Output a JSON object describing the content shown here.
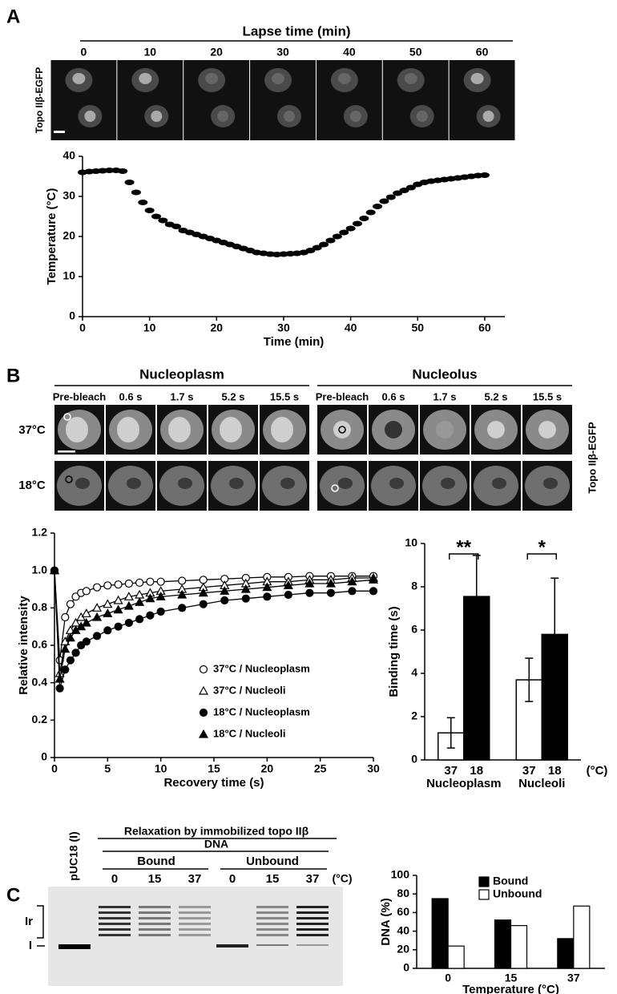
{
  "panel_labels": [
    "A",
    "B",
    "C"
  ],
  "panel_a": {
    "header": "Lapse time (min)",
    "times": [
      "0",
      "10",
      "20",
      "30",
      "40",
      "50",
      "60"
    ],
    "channel": "Topo IIβ-EGFP"
  },
  "panel_b": {
    "regions": [
      "Nucleoplasm",
      "Nucleolus"
    ],
    "timepoints": [
      "Pre-bleach",
      "0.6 s",
      "1.7 s",
      "5.2 s",
      "15.5 s"
    ],
    "temperatures": [
      "37°C",
      "18°C"
    ],
    "channel": "Topo IIβ-EGFP"
  },
  "panel_c": {
    "title": "Relaxation by immobilized topo IIβ",
    "dna": "DNA",
    "groups": [
      "Bound",
      "Unbound"
    ],
    "lanes": [
      "0",
      "15",
      "37",
      "0",
      "15",
      "37"
    ],
    "unit": "(°C)",
    "control": "pUC18 (I)",
    "bands": [
      "Ir",
      "I"
    ]
  },
  "chart_data": [
    {
      "type": "line",
      "x": [
        0,
        1,
        2,
        3,
        4,
        5,
        6,
        7,
        8,
        9,
        10,
        11,
        12,
        13,
        14,
        15,
        16,
        17,
        18,
        19,
        20,
        21,
        22,
        23,
        24,
        25,
        26,
        27,
        28,
        29,
        30,
        31,
        32,
        33,
        34,
        35,
        36,
        37,
        38,
        39,
        40,
        41,
        42,
        43,
        44,
        45,
        46,
        47,
        48,
        49,
        50,
        51,
        52,
        53,
        54,
        55,
        56,
        57,
        58,
        59,
        60
      ],
      "values": [
        36,
        36.2,
        36.3,
        36.4,
        36.5,
        36.5,
        36.3,
        33.5,
        31,
        28.5,
        26.5,
        25,
        24,
        23,
        22.5,
        21.5,
        21,
        20.5,
        20,
        19.5,
        19,
        18.5,
        18,
        17.5,
        17,
        16.5,
        16,
        15.8,
        15.6,
        15.5,
        15.6,
        15.7,
        15.8,
        16,
        16.5,
        17.2,
        18,
        19,
        20,
        21,
        22,
        23.2,
        24.5,
        26,
        27.5,
        28.8,
        29.8,
        30.8,
        31.5,
        32.2,
        33,
        33.5,
        33.8,
        34,
        34.2,
        34.4,
        34.6,
        34.8,
        35,
        35.2,
        35.3
      ],
      "color": "#000000",
      "xlim": [
        0,
        63
      ],
      "ylim": [
        0,
        40
      ],
      "xticks": [
        0,
        10,
        20,
        30,
        40,
        50,
        60
      ],
      "yticks": [
        0,
        10,
        20,
        30,
        40
      ],
      "xlabel": "Time (min)",
      "ylabel": "Temperature (°C)"
    },
    {
      "type": "line",
      "x": [
        0,
        0.5,
        1,
        1.5,
        2,
        2.5,
        3,
        4,
        5,
        6,
        7,
        8,
        9,
        10,
        12,
        14,
        16,
        18,
        20,
        22,
        24,
        26,
        28,
        30
      ],
      "series": [
        {
          "name": "37°C / Nucleoplasm",
          "color": "#000000",
          "marker": "circle",
          "filled": false,
          "values": [
            1.0,
            0.52,
            0.75,
            0.82,
            0.86,
            0.88,
            0.89,
            0.91,
            0.92,
            0.925,
            0.93,
            0.935,
            0.94,
            0.94,
            0.945,
            0.95,
            0.955,
            0.96,
            0.965,
            0.965,
            0.97,
            0.97,
            0.97,
            0.97
          ]
        },
        {
          "name": "37°C / Nucleoli",
          "color": "#000000",
          "marker": "triangle",
          "filled": false,
          "values": [
            1.0,
            0.45,
            0.62,
            0.68,
            0.72,
            0.75,
            0.77,
            0.8,
            0.82,
            0.84,
            0.86,
            0.87,
            0.88,
            0.89,
            0.9,
            0.91,
            0.92,
            0.93,
            0.94,
            0.94,
            0.95,
            0.95,
            0.96,
            0.96
          ]
        },
        {
          "name": "18°C / Nucleoplasm",
          "color": "#000000",
          "marker": "circle",
          "filled": true,
          "values": [
            1.0,
            0.37,
            0.47,
            0.52,
            0.56,
            0.6,
            0.62,
            0.65,
            0.68,
            0.7,
            0.72,
            0.74,
            0.76,
            0.78,
            0.8,
            0.82,
            0.84,
            0.85,
            0.86,
            0.87,
            0.88,
            0.88,
            0.89,
            0.89
          ]
        },
        {
          "name": "18°C / Nucleoli",
          "color": "#000000",
          "marker": "triangle",
          "filled": true,
          "values": [
            1.0,
            0.42,
            0.58,
            0.64,
            0.68,
            0.7,
            0.72,
            0.75,
            0.77,
            0.79,
            0.81,
            0.83,
            0.85,
            0.86,
            0.87,
            0.88,
            0.89,
            0.9,
            0.91,
            0.92,
            0.93,
            0.93,
            0.94,
            0.95
          ]
        }
      ],
      "xlim": [
        0,
        30
      ],
      "ylim": [
        0,
        1.2
      ],
      "xticks": [
        0,
        5,
        10,
        15,
        20,
        25,
        30
      ],
      "yticks": [
        0,
        0.2,
        0.4,
        0.6,
        0.8,
        {
          "value": 1,
          "label": "1.0"
        },
        1.2
      ],
      "legend": "lower right",
      "xlabel": "Recovery time (s)",
      "ylabel": "Relative intensity"
    },
    {
      "type": "bar",
      "categories": [
        "37",
        "18",
        "37",
        "18"
      ],
      "groups": [
        "Nucleoplasm",
        "Nucleoli"
      ],
      "unit": "(°C)",
      "values": [
        1.25,
        7.55,
        3.7,
        5.8
      ],
      "errors": [
        0.7,
        1.9,
        1.0,
        2.6
      ],
      "colors": [
        "#ffffff",
        "#000000",
        "#ffffff",
        "#000000"
      ],
      "annotations": [
        "**",
        "*"
      ],
      "ylim": [
        0,
        10
      ],
      "yticks": [
        0,
        2,
        4,
        6,
        8,
        10
      ],
      "ylabel": "Binding time (s)"
    },
    {
      "type": "bar",
      "categories": [
        "0",
        "15",
        "37"
      ],
      "series": [
        {
          "name": "Bound",
          "color": "#000000",
          "values": [
            75,
            52,
            32
          ]
        },
        {
          "name": "Unbound",
          "color": "#ffffff",
          "values": [
            24,
            46,
            67
          ]
        }
      ],
      "ylim": [
        0,
        100
      ],
      "yticks": [
        0,
        20,
        40,
        60,
        80,
        100
      ],
      "legend": "upper right",
      "xlabel": "Temperature (°C)",
      "ylabel": "DNA (%)"
    }
  ]
}
